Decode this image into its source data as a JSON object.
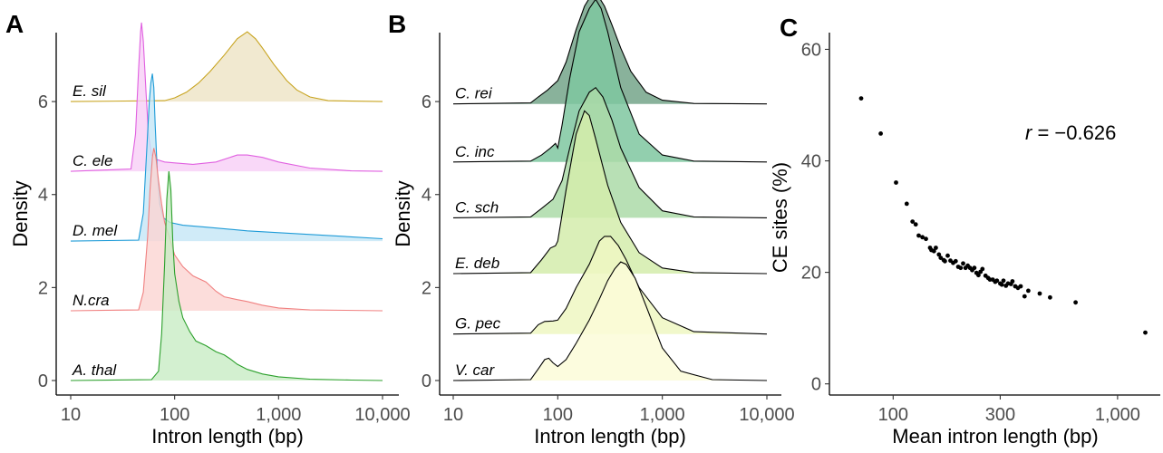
{
  "panels": {
    "A": {
      "letter": "A",
      "xlabel": "Intron length (bp)",
      "ylabel": "Density",
      "xticks": [
        "10",
        "100",
        "1,000",
        "10,000"
      ],
      "yticks": [
        "0",
        "2",
        "4",
        "6"
      ]
    },
    "B": {
      "letter": "B",
      "xlabel": "Intron length (bp)",
      "ylabel": "Density",
      "xticks": [
        "10",
        "100",
        "1,000",
        "10,000"
      ],
      "yticks": [
        "0",
        "2",
        "4",
        "6"
      ]
    },
    "C": {
      "letter": "C",
      "xlabel": "Mean intron length (bp)",
      "ylabel": "CE sites (%)",
      "xticks": [
        "100",
        "300",
        "1,000"
      ],
      "yticks": [
        "0",
        "20",
        "40",
        "60"
      ],
      "annotation": {
        "r_symbol": "r",
        "r_value": " = −0.626"
      }
    }
  },
  "chart_data": [
    {
      "panel": "A",
      "type": "area",
      "subtype": "ridgeline",
      "xscale": "log10",
      "xlim": [
        10,
        10000
      ],
      "ylim": [
        0,
        7.6
      ],
      "xlabel": "Intron length (bp)",
      "ylabel": "Density",
      "series": [
        {
          "name": "A. thal",
          "baseline": 0,
          "color": "#2ca02c",
          "fill": "#c8ecc4",
          "x": [
            10,
            60,
            70,
            75,
            80,
            84,
            88,
            92,
            96,
            100,
            110,
            120,
            140,
            160,
            200,
            250,
            300,
            350,
            400,
            500,
            700,
            1000,
            2000,
            5000,
            10000
          ],
          "y": [
            0,
            0.02,
            0.2,
            1.0,
            2.5,
            3.9,
            4.5,
            4.1,
            3.0,
            2.3,
            1.7,
            1.35,
            1.05,
            0.85,
            0.75,
            0.62,
            0.55,
            0.45,
            0.35,
            0.24,
            0.14,
            0.08,
            0.03,
            0.01,
            0
          ]
        },
        {
          "name": "N.cra",
          "baseline": 1.5,
          "color": "#f08080",
          "fill": "#fbd5d2",
          "x": [
            10,
            45,
            50,
            55,
            58,
            61,
            63,
            66,
            70,
            75,
            80,
            90,
            100,
            120,
            150,
            200,
            250,
            300,
            400,
            500,
            700,
            1000,
            2000,
            10000
          ],
          "y": [
            0,
            0.02,
            0.4,
            1.6,
            2.6,
            3.3,
            3.5,
            3.3,
            2.8,
            2.3,
            1.9,
            1.55,
            1.2,
            0.95,
            0.75,
            0.62,
            0.42,
            0.3,
            0.24,
            0.2,
            0.12,
            0.06,
            0.02,
            0
          ]
        },
        {
          "name": "D. mel",
          "baseline": 3.0,
          "color": "#1e9bd7",
          "fill": "#c4e6f6",
          "x": [
            10,
            45,
            50,
            54,
            57,
            59,
            61,
            63,
            65,
            68,
            72,
            78,
            90,
            120,
            200,
            500,
            1000,
            3000,
            10000
          ],
          "y": [
            0,
            0.02,
            0.6,
            2.0,
            3.0,
            3.4,
            3.6,
            3.3,
            2.5,
            1.5,
            0.8,
            0.5,
            0.4,
            0.34,
            0.3,
            0.22,
            0.18,
            0.12,
            0.05
          ]
        },
        {
          "name": "C. ele",
          "baseline": 4.5,
          "color": "#e060e0",
          "fill": "#f8cef6",
          "x": [
            10,
            38,
            42,
            45,
            47,
            48,
            50,
            53,
            56,
            60,
            68,
            80,
            100,
            150,
            250,
            400,
            500,
            700,
            1000,
            2000,
            5000,
            10000
          ],
          "y": [
            0,
            0.05,
            0.8,
            2.2,
            3.0,
            3.2,
            2.8,
            1.7,
            0.8,
            0.35,
            0.25,
            0.2,
            0.18,
            0.15,
            0.2,
            0.35,
            0.35,
            0.3,
            0.2,
            0.07,
            0.01,
            0
          ]
        },
        {
          "name": "E. sil",
          "baseline": 6.0,
          "color": "#c8a420",
          "fill": "#eee4c4",
          "x": [
            10,
            80,
            100,
            130,
            170,
            220,
            300,
            400,
            500,
            600,
            700,
            900,
            1200,
            1500,
            2000,
            3000,
            10000
          ],
          "y": [
            0,
            0.02,
            0.08,
            0.2,
            0.4,
            0.65,
            1.0,
            1.35,
            1.5,
            1.35,
            1.15,
            0.8,
            0.45,
            0.25,
            0.1,
            0.02,
            0
          ]
        }
      ]
    },
    {
      "panel": "B",
      "type": "area",
      "subtype": "ridgeline",
      "xscale": "log10",
      "xlim": [
        10,
        10000
      ],
      "ylim": [
        0,
        7.6
      ],
      "xlabel": "Intron length (bp)",
      "ylabel": "Density",
      "series": [
        {
          "name": "V. car",
          "baseline": 0,
          "color": "#000000",
          "fill": "#fbfbd8",
          "x": [
            10,
            55,
            65,
            75,
            82,
            90,
            100,
            120,
            150,
            200,
            250,
            300,
            350,
            400,
            450,
            550,
            700,
            1000,
            1500,
            3000,
            10000
          ],
          "y": [
            0,
            0.02,
            0.25,
            0.45,
            0.48,
            0.38,
            0.3,
            0.45,
            0.8,
            1.3,
            1.75,
            2.15,
            2.4,
            2.55,
            2.5,
            2.2,
            1.6,
            0.7,
            0.2,
            0.02,
            0
          ]
        },
        {
          "name": "G. pec",
          "baseline": 1.0,
          "color": "#000000",
          "fill": "#eef7c2",
          "x": [
            10,
            55,
            65,
            75,
            90,
            100,
            120,
            150,
            200,
            250,
            280,
            320,
            380,
            450,
            600,
            1000,
            2000,
            10000
          ],
          "y": [
            0,
            0.02,
            0.2,
            0.27,
            0.28,
            0.3,
            0.55,
            1.0,
            1.5,
            2.0,
            2.1,
            2.1,
            1.9,
            1.6,
            1.0,
            0.35,
            0.05,
            0
          ]
        },
        {
          "name": "E. deb",
          "baseline": 2.3,
          "color": "#000000",
          "fill": "#d4ecac",
          "x": [
            10,
            55,
            70,
            85,
            95,
            100,
            120,
            150,
            180,
            200,
            230,
            300,
            400,
            600,
            1000,
            2000,
            10000
          ],
          "y": [
            0,
            0.02,
            0.3,
            0.55,
            0.6,
            0.7,
            1.8,
            3.0,
            3.5,
            3.4,
            2.9,
            1.9,
            1.1,
            0.45,
            0.12,
            0.02,
            0
          ]
        },
        {
          "name": "C. sch",
          "baseline": 3.5,
          "color": "#000000",
          "fill": "#acdaa8",
          "x": [
            10,
            55,
            70,
            90,
            110,
            130,
            160,
            200,
            230,
            270,
            330,
            400,
            600,
            1000,
            2000,
            10000
          ],
          "y": [
            0,
            0.02,
            0.2,
            0.4,
            0.8,
            1.5,
            2.3,
            2.7,
            2.8,
            2.6,
            2.1,
            1.5,
            0.65,
            0.15,
            0.02,
            0
          ]
        },
        {
          "name": "C. inc",
          "baseline": 4.7,
          "color": "#000000",
          "fill": "#7fc7a0",
          "x": [
            10,
            55,
            70,
            85,
            95,
            100,
            110,
            130,
            160,
            200,
            230,
            260,
            300,
            400,
            600,
            1000,
            2000,
            10000
          ],
          "y": [
            0,
            0.02,
            0.15,
            0.3,
            0.4,
            0.3,
            0.8,
            1.8,
            2.8,
            3.3,
            3.5,
            3.3,
            2.8,
            1.6,
            0.6,
            0.15,
            0.02,
            0
          ]
        },
        {
          "name": "C. rei",
          "baseline": 5.95,
          "color": "#000000",
          "fill": "#74a48a",
          "x": [
            10,
            55,
            65,
            80,
            100,
            120,
            150,
            180,
            210,
            240,
            280,
            330,
            400,
            500,
            700,
            1000,
            2000,
            10000
          ],
          "y": [
            0,
            0.02,
            0.15,
            0.3,
            0.5,
            0.9,
            1.6,
            2.1,
            2.35,
            2.35,
            2.1,
            1.7,
            1.2,
            0.7,
            0.25,
            0.08,
            0.01,
            0
          ]
        }
      ]
    },
    {
      "panel": "C",
      "type": "scatter",
      "xscale": "log10",
      "xlim": [
        52,
        1550
      ],
      "ylim": [
        -2,
        63
      ],
      "xlabel": "Mean intron length (bp)",
      "ylabel": "CE sites (%)",
      "annotation": "r = −0.626",
      "x": [
        72,
        88,
        103,
        115,
        122,
        126,
        130,
        135,
        140,
        146,
        148,
        152,
        155,
        160,
        163,
        168,
        170,
        175,
        180,
        185,
        190,
        195,
        200,
        205,
        210,
        215,
        220,
        225,
        230,
        235,
        240,
        245,
        250,
        258,
        265,
        270,
        278,
        285,
        290,
        300,
        305,
        310,
        318,
        325,
        335,
        340,
        350,
        360,
        370,
        385,
        400,
        450,
        500,
        650,
        1330
      ],
      "y": [
        51.2,
        44.9,
        36.1,
        32.3,
        29.1,
        28.6,
        26.6,
        26.3,
        26.0,
        24.4,
        24.0,
        23.8,
        24.4,
        23.2,
        22.6,
        22.2,
        22.0,
        23.0,
        22.1,
        21.7,
        22.0,
        21.0,
        20.8,
        21.6,
        20.8,
        21.2,
        20.8,
        20.4,
        20.8,
        19.9,
        19.5,
        20.1,
        20.6,
        19.4,
        19.0,
        18.7,
        18.7,
        18.3,
        18.5,
        18.0,
        17.8,
        18.5,
        17.6,
        18.0,
        17.9,
        18.4,
        17.5,
        17.2,
        17.5,
        15.7,
        16.7,
        16.2,
        15.5,
        14.6,
        9.2
      ]
    }
  ]
}
